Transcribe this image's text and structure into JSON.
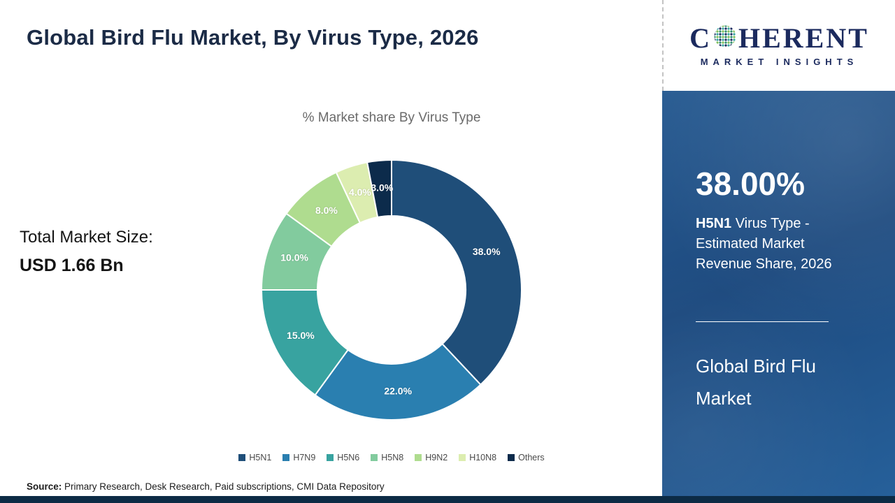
{
  "header": {
    "title": "Global Bird Flu Market, By Virus Type, 2026"
  },
  "logo": {
    "brand_c": "C",
    "brand_rest": "HERENT",
    "brand_sub": "MARKET INSIGHTS"
  },
  "left_panel": {
    "market_size_label": "Total Market Size:",
    "market_size_value": "USD 1.66 Bn"
  },
  "chart_data": {
    "type": "pie",
    "donut": true,
    "title": "% Market share By Virus Type",
    "categories": [
      "H5N1",
      "H7N9",
      "H5N6",
      "H5N8",
      "H9N2",
      "H10N8",
      "Others"
    ],
    "values": [
      38.0,
      22.0,
      15.0,
      10.0,
      8.0,
      4.0,
      3.0
    ],
    "labels": [
      "38.0%",
      "22.0%",
      "15.0%",
      "10.0%",
      "8.0%",
      "4.0%",
      "3.0%"
    ],
    "colors": [
      "#1F4E79",
      "#2A7FB0",
      "#38A3A0",
      "#82CB9E",
      "#AFDC8F",
      "#DCEDB0",
      "#0C2B4B"
    ],
    "start_angle_deg": 0,
    "direction": "clockwise",
    "legend_position": "bottom"
  },
  "sidebar": {
    "stat_value": "38.00%",
    "stat_highlight": "H5N1",
    "stat_text": " Virus Type - Estimated Market Revenue Share, 2026",
    "panel_title": "Global Bird Flu Market",
    "panel_blue": "#1E548C"
  },
  "footer": {
    "source_label": "Source:",
    "source_text": " Primary Research, Desk Research, Paid subscriptions, CMI Data Repository",
    "bar_color": "#0C2B45"
  }
}
